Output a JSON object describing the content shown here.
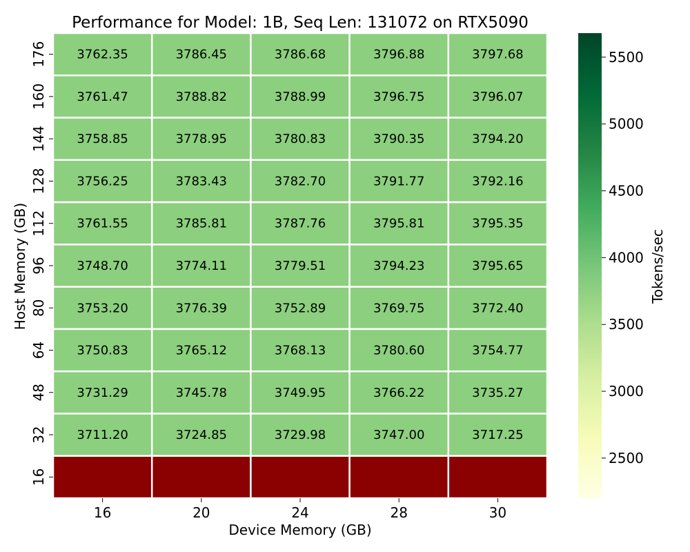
{
  "chart_data": {
    "type": "heatmap",
    "title": "Performance for Model: 1B, Seq Len: 131072 on RTX5090",
    "xlabel": "Device Memory (GB)",
    "ylabel": "Host Memory (GB)",
    "x_categories": [
      "16",
      "20",
      "24",
      "28",
      "30"
    ],
    "y_categories": [
      "176",
      "160",
      "144",
      "128",
      "112",
      "96",
      "80",
      "64",
      "48",
      "32",
      "16"
    ],
    "values": [
      [
        3762.35,
        3786.45,
        3786.68,
        3796.88,
        3797.68
      ],
      [
        3761.47,
        3788.82,
        3788.99,
        3796.75,
        3796.07
      ],
      [
        3758.85,
        3778.95,
        3780.83,
        3790.35,
        3794.2
      ],
      [
        3756.25,
        3783.43,
        3782.7,
        3791.77,
        3792.16
      ],
      [
        3761.55,
        3785.81,
        3787.76,
        3795.81,
        3795.35
      ],
      [
        3748.7,
        3774.11,
        3779.51,
        3794.23,
        3795.65
      ],
      [
        3753.2,
        3776.39,
        3752.89,
        3769.75,
        3772.4
      ],
      [
        3750.83,
        3765.12,
        3768.13,
        3780.6,
        3754.77
      ],
      [
        3731.29,
        3745.78,
        3749.95,
        3766.22,
        3735.27
      ],
      [
        3711.2,
        3724.85,
        3729.98,
        3747.0,
        3717.25
      ],
      [
        null,
        null,
        null,
        null,
        null
      ]
    ],
    "missing_color": "#8b0000",
    "cell_color": "#8ccf7e",
    "grid_line_color": "#ffffff",
    "colorbar": {
      "label": "Tokens/sec",
      "min": 2200,
      "max": 5680,
      "ticks": [
        2500,
        3000,
        3500,
        4000,
        4500,
        5000,
        5500
      ],
      "colormap": "YlGn",
      "stops": [
        "#ffffe5",
        "#f7fcb9",
        "#d9f0a3",
        "#addd8e",
        "#78c679",
        "#41ab5d",
        "#238443",
        "#006837",
        "#004529"
      ]
    }
  }
}
